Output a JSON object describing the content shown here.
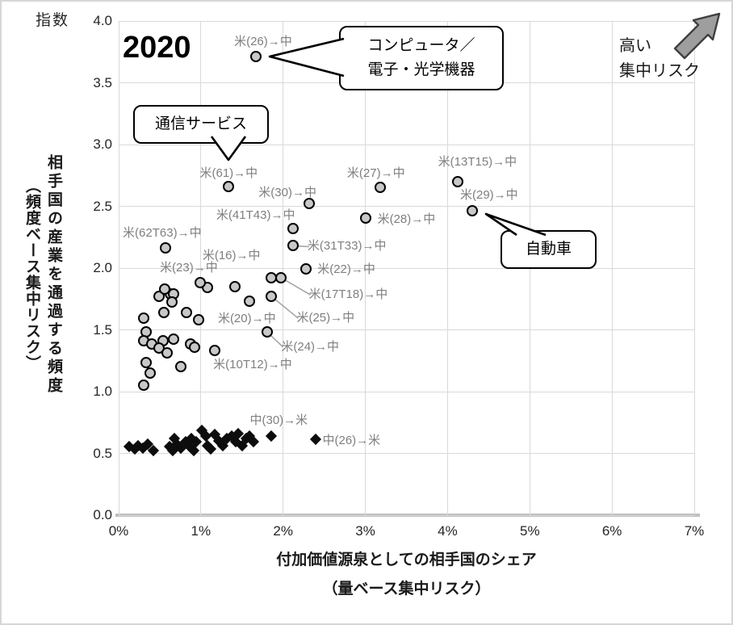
{
  "header": {
    "unit_label": "指数",
    "year": "2020"
  },
  "risk_note": {
    "line1": "高い",
    "line2": "集中リスク"
  },
  "callouts": {
    "computer": {
      "line1": "コンピュータ／",
      "line2": "電子・光学機器"
    },
    "telecom": {
      "label": "通信サービス"
    },
    "auto": {
      "label": "自動車"
    }
  },
  "axes": {
    "y_ticks": [
      "4.0",
      "3.5",
      "3.0",
      "2.5",
      "2.0",
      "1.5",
      "1.0",
      "0.5",
      "0.0"
    ],
    "x_ticks": [
      "0%",
      "1%",
      "2%",
      "3%",
      "4%",
      "5%",
      "6%",
      "7%"
    ],
    "y_title": "相手国の産業を通過する頻度",
    "y_title_sub": "（頻度ベース集中リスク）",
    "x_title": "付加価値源泉としての相手国のシェア",
    "x_title_sub": "（量ベース集中リスク）"
  },
  "chart_data": {
    "type": "scatter",
    "title": "2020",
    "xlabel": "付加価値源泉としての相手国のシェア（量ベース集中リスク）",
    "ylabel": "相手国の産業を通過する頻度（頻度ベース集中リスク）",
    "xlim": [
      0,
      7
    ],
    "ylim": [
      0,
      4
    ],
    "x_unit": "%",
    "y_unit": "指数",
    "grid": true,
    "series": [
      {
        "name": "米→中",
        "marker": "circle",
        "fill": "#c8c8c8",
        "stroke": "#000000",
        "labeled_points": [
          {
            "label": "米(26)→中",
            "x": 1.67,
            "y": 3.71,
            "dx": -27,
            "dy": -27
          },
          {
            "label": "米(61)→中",
            "x": 1.34,
            "y": 2.66,
            "dx": -36,
            "dy": -25
          },
          {
            "label": "米(13T15)→中",
            "x": 4.13,
            "y": 2.7,
            "dx": -25,
            "dy": -33
          },
          {
            "label": "米(27)→中",
            "x": 3.18,
            "y": 2.65,
            "dx": -41,
            "dy": -27
          },
          {
            "label": "米(30)→中",
            "x": 2.32,
            "y": 2.52,
            "dx": -63,
            "dy": -22
          },
          {
            "label": "米(29)→中",
            "x": 4.3,
            "y": 2.46,
            "dx": -15,
            "dy": -29
          },
          {
            "label": "米(28)→中",
            "x": 3.01,
            "y": 2.4,
            "dx": 14,
            "dy": -8
          },
          {
            "label": "米(41T43)→中",
            "x": 2.12,
            "y": 2.32,
            "dx": -95,
            "dy": -25
          },
          {
            "label": "米(31T33)→中",
            "x": 2.12,
            "y": 2.18,
            "dx": 18,
            "dy": -8,
            "leader": true
          },
          {
            "label": "米(62T63)→中",
            "x": 0.57,
            "y": 2.16,
            "dx": -53,
            "dy": -28
          },
          {
            "label": "米(22)→中",
            "x": 2.28,
            "y": 1.99,
            "dx": 14,
            "dy": -9
          },
          {
            "label": "米(17T18)→中",
            "x": 1.98,
            "y": 1.92,
            "dx": 34,
            "dy": 12,
            "leader": true
          },
          {
            "label": "米(16)→中",
            "x": 1.0,
            "y": 1.88,
            "dx": 2,
            "dy": -42
          },
          {
            "label": "米(23)→中",
            "x": 0.56,
            "y": 1.83,
            "dx": -6,
            "dy": -35
          },
          {
            "label": "米(25)→中",
            "x": 1.86,
            "y": 1.77,
            "dx": 31,
            "dy": 18,
            "leader": true
          },
          {
            "label": "米(20)→中",
            "x": 1.59,
            "y": 1.73,
            "dx": -39,
            "dy": 13
          },
          {
            "label": "米(24)→中",
            "x": 1.81,
            "y": 1.48,
            "dx": 17,
            "dy": 9,
            "leader": true
          },
          {
            "label": "米(10T12)→中",
            "x": 1.17,
            "y": 1.33,
            "dx": -2,
            "dy": 8
          }
        ],
        "points": [
          [
            0.31,
            1.59
          ],
          [
            0.49,
            1.77
          ],
          [
            0.63,
            1.79
          ],
          [
            0.67,
            1.79
          ],
          [
            0.65,
            1.72
          ],
          [
            0.55,
            1.64
          ],
          [
            0.83,
            1.64
          ],
          [
            0.98,
            1.58
          ],
          [
            1.08,
            1.84
          ],
          [
            1.42,
            1.85
          ],
          [
            1.86,
            1.92
          ],
          [
            0.34,
            1.48
          ],
          [
            0.31,
            1.41
          ],
          [
            0.41,
            1.38
          ],
          [
            0.54,
            1.41
          ],
          [
            0.67,
            1.42
          ],
          [
            0.49,
            1.35
          ],
          [
            0.59,
            1.31
          ],
          [
            0.88,
            1.38
          ],
          [
            0.93,
            1.36
          ],
          [
            0.34,
            1.23
          ],
          [
            0.39,
            1.15
          ],
          [
            0.76,
            1.2
          ],
          [
            0.31,
            1.05
          ]
        ]
      },
      {
        "name": "中→米",
        "marker": "diamond",
        "fill": "#0d0d0d",
        "labeled_points": [
          {
            "label": "中(30)→米",
            "x": 1.88,
            "y": 0.63,
            "dx": -29,
            "dy": -30
          },
          {
            "label": "中(26)→米",
            "x": 2.42,
            "y": 0.6,
            "dx": 6,
            "dy": -9
          }
        ],
        "points": [
          [
            0.15,
            0.54
          ],
          [
            0.22,
            0.52
          ],
          [
            0.26,
            0.55
          ],
          [
            0.31,
            0.53
          ],
          [
            0.37,
            0.56
          ],
          [
            0.44,
            0.51
          ],
          [
            0.64,
            0.54
          ],
          [
            0.68,
            0.51
          ],
          [
            0.7,
            0.61
          ],
          [
            0.73,
            0.56
          ],
          [
            0.78,
            0.53
          ],
          [
            0.83,
            0.58
          ],
          [
            0.88,
            0.54
          ],
          [
            0.9,
            0.61
          ],
          [
            0.93,
            0.51
          ],
          [
            0.96,
            0.58
          ],
          [
            1.03,
            0.67
          ],
          [
            1.08,
            0.63
          ],
          [
            1.1,
            0.55
          ],
          [
            1.14,
            0.52
          ],
          [
            1.19,
            0.64
          ],
          [
            1.24,
            0.59
          ],
          [
            1.29,
            0.55
          ],
          [
            1.34,
            0.61
          ],
          [
            1.39,
            0.63
          ],
          [
            1.44,
            0.58
          ],
          [
            1.47,
            0.65
          ],
          [
            1.52,
            0.55
          ],
          [
            1.57,
            0.61
          ],
          [
            1.61,
            0.63
          ],
          [
            1.66,
            0.58
          ]
        ]
      }
    ]
  }
}
